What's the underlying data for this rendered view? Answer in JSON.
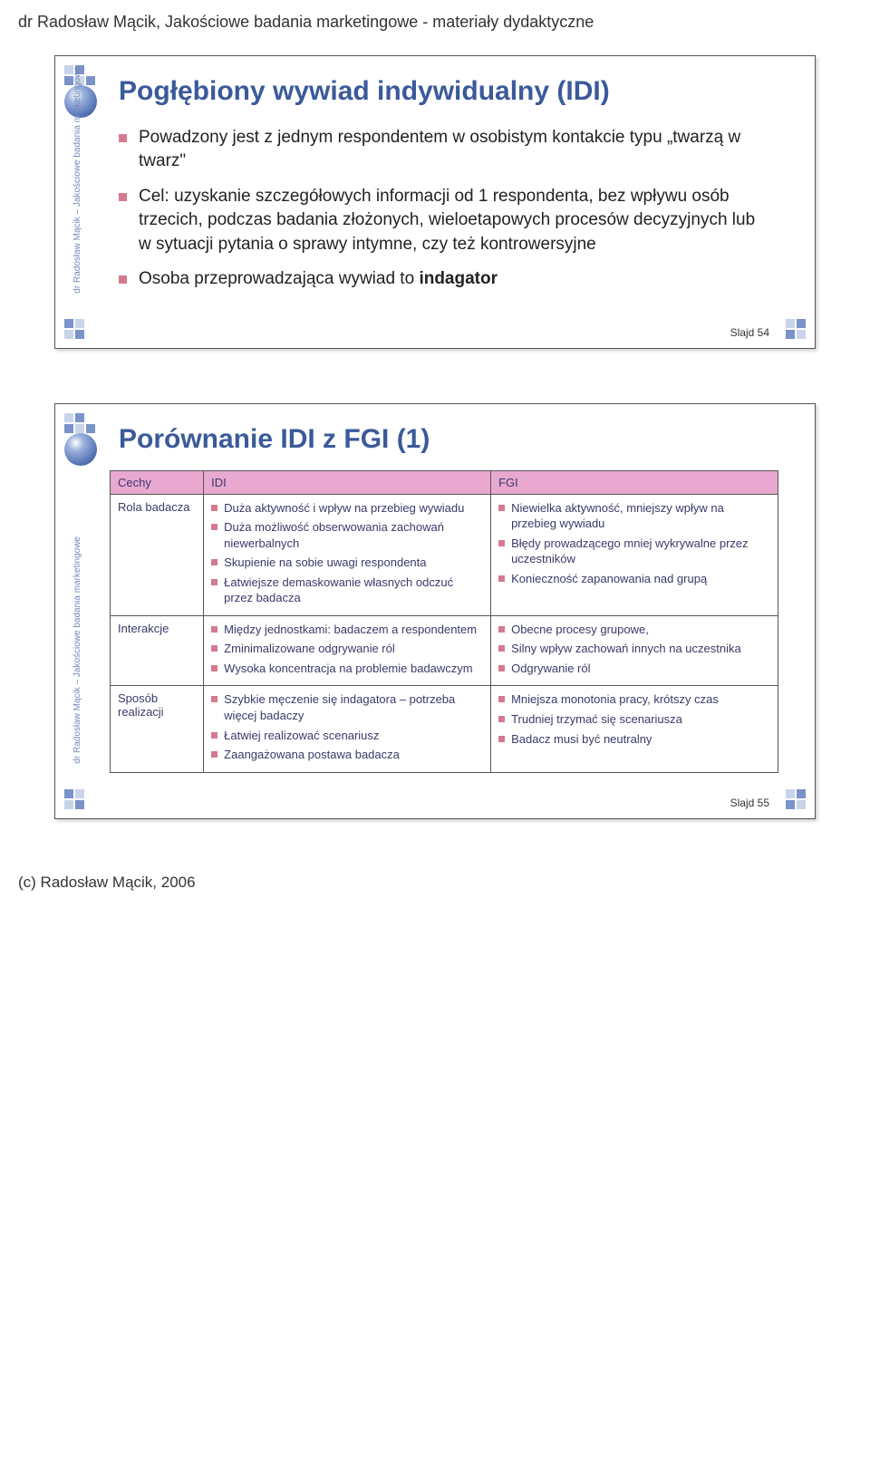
{
  "page_header": "dr Radosław Mącik, Jakościowe badania marketingowe - materiały dydaktyczne",
  "page_footer": "(c) Radosław Mącik, 2006",
  "side_label": "dr Radosław Mącik – Jakościowe badania marketingowe",
  "slide1": {
    "title": "Pogłębiony wywiad indywidualny (IDI)",
    "bullets": [
      "Powadzony jest z jednym respondentem w osobistym kontakcie typu „twarzą w twarz\"",
      "Cel: uzyskanie szczegółowych informacji od 1 respondenta, bez wpływu osób trzecich, podczas badania złożonych, wieloetapowych procesów decyzyjnych lub w sytuacji pytania o sprawy intymne, czy też kontrowersyjne",
      "Osoba przeprowadzająca wywiad to indagator"
    ],
    "slide_num": "Slajd 54"
  },
  "slide2": {
    "title": "Porównanie IDI z FGI (1)",
    "headers": [
      "Cechy",
      "IDI",
      "FGI"
    ],
    "rows": [
      {
        "label": "Rola badacza",
        "idi": [
          "Duża aktywność i wpływ na przebieg wywiadu",
          "Duża możliwość obserwowania zachowań niewerbalnych",
          "Skupienie na sobie uwagi respondenta",
          "Łatwiejsze demaskowanie własnych odczuć przez badacza"
        ],
        "fgi": [
          "Niewielka aktywność, mniejszy wpływ na przebieg wywiadu",
          "Błędy prowadzącego mniej wykrywalne przez uczestników",
          "Konieczność zapanowania nad grupą"
        ]
      },
      {
        "label": "Interakcje",
        "idi": [
          "Między jednostkami: badaczem a respondentem",
          "Zminimalizowane odgrywanie ról",
          "Wysoka koncentracja na problemie badawczym"
        ],
        "fgi": [
          "Obecne procesy grupowe,",
          "Silny wpływ zachowań innych na uczestnika",
          "Odgrywanie ról"
        ]
      },
      {
        "label": "Sposób realizacji",
        "idi": [
          "Szybkie męczenie się indagatora – potrzeba więcej badaczy",
          "Łatwiej realizować scenariusz",
          "Zaangażowana postawa badacza"
        ],
        "fgi": [
          "Mniejsza monotonia pracy, krótszy czas",
          "Trudniej trzymać się scenariusza",
          "Badacz musi być neutralny"
        ]
      }
    ],
    "slide_num": "Slajd 55"
  }
}
